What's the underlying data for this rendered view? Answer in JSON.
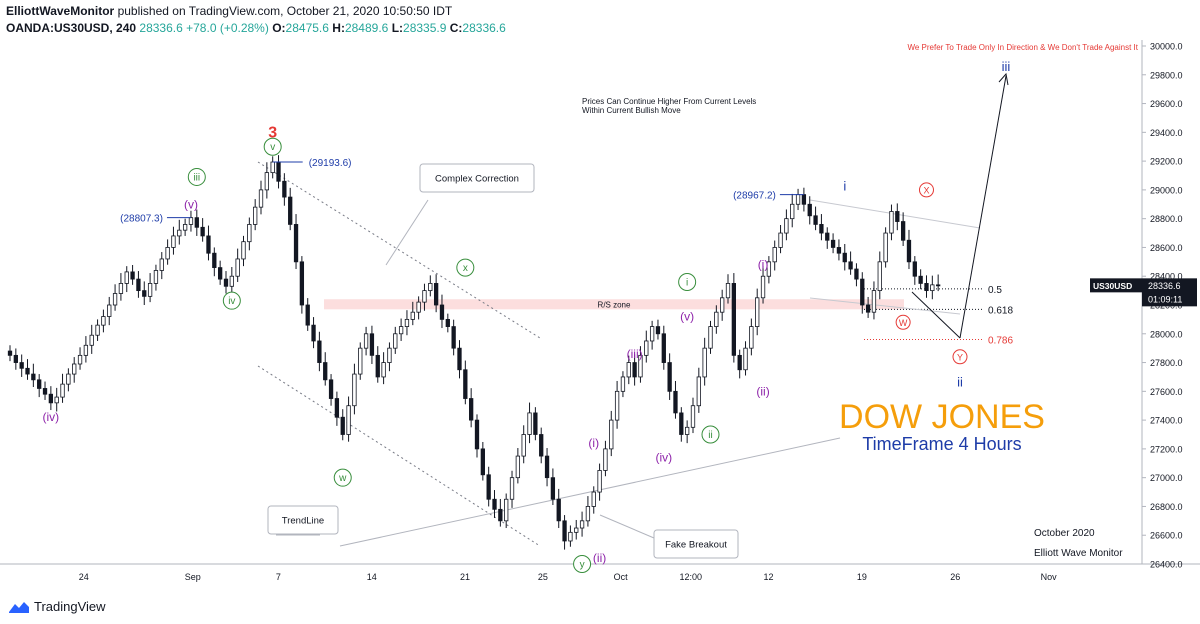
{
  "header": {
    "publisher": "ElliottWaveMonitor",
    "published_text": "published on TradingView.com, October 21, 2020 10:50:50 IDT",
    "symbol_line_prefix": "OANDA:US30USD, 240",
    "last": "28336.6",
    "change": "+78.0 (+0.28%)",
    "o_label": "O:",
    "o": "28475.6",
    "h_label": "H:",
    "h": "28489.6",
    "l_label": "L:",
    "l": "28335.9",
    "c_label": "C:",
    "c": "28336.6"
  },
  "footer": {
    "logo_text": "TradingView"
  },
  "colors": {
    "up": "#26a69a",
    "down": "#ef5350",
    "bar": "#131722",
    "green": "#388e3c",
    "purple": "#8e24aa",
    "blue": "#1e3ca8",
    "red": "#e53935",
    "orange": "#f59e0b"
  },
  "chart_data": {
    "type": "candlestick",
    "symbol": "OANDA:US30USD",
    "timeframe": "240",
    "price_axis": {
      "min": 26400,
      "max": 30000,
      "ticks": [
        "30000.0",
        "29800.0",
        "29600.0",
        "29400.0",
        "29200.0",
        "29000.0",
        "28800.0",
        "28600.0",
        "28400.0",
        "28200.0",
        "28000.0",
        "27800.0",
        "27600.0",
        "27400.0",
        "27200.0",
        "27000.0",
        "26800.0",
        "26600.0",
        "26400.0"
      ],
      "last_price_label": "28336.6",
      "symbol_badge": "US30USD",
      "countdown": "01:09:11"
    },
    "time_axis": {
      "ticks": [
        {
          "label": "24",
          "t": 10
        },
        {
          "label": "Sep",
          "t": 24
        },
        {
          "label": "7",
          "t": 35
        },
        {
          "label": "14",
          "t": 47
        },
        {
          "label": "21",
          "t": 59
        },
        {
          "label": "25",
          "t": 69
        },
        {
          "label": "Oct",
          "t": 79
        },
        {
          "label": "12:00",
          "t": 88
        },
        {
          "label": "12",
          "t": 98
        },
        {
          "label": "19",
          "t": 110
        },
        {
          "label": "26",
          "t": 122
        },
        {
          "label": "Nov",
          "t": 134
        }
      ],
      "t_max": 146
    },
    "closes": [
      27850,
      27800,
      27760,
      27720,
      27680,
      27620,
      27580,
      27520,
      27560,
      27650,
      27720,
      27790,
      27850,
      27920,
      27990,
      28060,
      28120,
      28200,
      28280,
      28350,
      28430,
      28380,
      28300,
      28260,
      28350,
      28440,
      28520,
      28600,
      28680,
      28720,
      28760,
      28807,
      28740,
      28680,
      28560,
      28460,
      28380,
      28330,
      28400,
      28520,
      28640,
      28760,
      28880,
      29000,
      29120,
      29193.6,
      29060,
      28950,
      28760,
      28500,
      28200,
      28060,
      27950,
      27800,
      27680,
      27550,
      27420,
      27300,
      27500,
      27720,
      27900,
      28000,
      27850,
      27700,
      27800,
      27900,
      28000,
      28050,
      28100,
      28150,
      28220,
      28300,
      28350,
      28200,
      28100,
      28050,
      27900,
      27750,
      27550,
      27400,
      27200,
      27020,
      26850,
      26780,
      26700,
      26850,
      27000,
      27150,
      27300,
      27450,
      27300,
      27150,
      27000,
      26850,
      26700,
      26560,
      26620,
      26650,
      26700,
      26800,
      26900,
      27050,
      27200,
      27400,
      27600,
      27700,
      27800,
      27700,
      27850,
      27950,
      28050,
      28000,
      27800,
      27600,
      27450,
      27300,
      27350,
      27500,
      27700,
      27900,
      28050,
      28150,
      28250,
      28350,
      27850,
      27750,
      27900,
      28050,
      28250,
      28400,
      28500,
      28600,
      28700,
      28800,
      28900,
      28967.2,
      28900,
      28820,
      28760,
      28700,
      28650,
      28600,
      28560,
      28500,
      28450,
      28380,
      28200,
      28150,
      28300,
      28500,
      28700,
      28850,
      28780,
      28650,
      28500,
      28400,
      28350,
      28300,
      28340,
      28336.6
    ],
    "levels": [
      {
        "label": "0.5",
        "price": 28312
      },
      {
        "label": "0.618",
        "price": 28170
      },
      {
        "label": "0.786",
        "price": 27960
      }
    ],
    "rs_zone": {
      "label": "R/S zone",
      "from": 28240,
      "to": 28170
    },
    "price_labels": [
      {
        "text": "(28807.3)",
        "t": 31,
        "price": 28807.3
      },
      {
        "text": "(29193.6)",
        "t": 45,
        "price": 29193.6
      },
      {
        "text": "(28967.2)",
        "t": 136,
        "price": 28967.2
      }
    ],
    "wave_labels": [
      {
        "text": "3",
        "t": 45,
        "price": 29400,
        "style": "red"
      },
      {
        "text": "v",
        "t": 45,
        "price": 29300,
        "style": "green-circle"
      },
      {
        "text": "iii",
        "t": 32,
        "price": 29090,
        "style": "green-circle"
      },
      {
        "text": "(v)",
        "t": 31,
        "price": 28900,
        "style": "purple"
      },
      {
        "text": "iv",
        "t": 38,
        "price": 28230,
        "style": "green-circle"
      },
      {
        "text": "(iv)",
        "t": 7,
        "price": 27420,
        "style": "purple"
      },
      {
        "text": "w",
        "t": 57,
        "price": 27000,
        "style": "green-circle"
      },
      {
        "text": "x",
        "t": 78,
        "price": 28460,
        "style": "green-circle"
      },
      {
        "text": "y",
        "t": 98,
        "price": 26400,
        "style": "green-circle"
      },
      {
        "text": "(i)",
        "t": 100,
        "price": 27240,
        "style": "purple"
      },
      {
        "text": "(ii)",
        "t": 101,
        "price": 26440,
        "style": "purple"
      },
      {
        "text": "(iii)",
        "t": 107,
        "price": 27860,
        "style": "purple"
      },
      {
        "text": "(iv)",
        "t": 112,
        "price": 27140,
        "style": "purple"
      },
      {
        "text": "(v)",
        "t": 116,
        "price": 28120,
        "style": "purple"
      },
      {
        "text": "i",
        "t": 116,
        "price": 28360,
        "style": "green-circle"
      },
      {
        "text": "ii",
        "t": 120,
        "price": 27300,
        "style": "green-circle"
      },
      {
        "text": "(i)",
        "t": 129,
        "price": 28480,
        "style": "purple"
      },
      {
        "text": "(ii)",
        "t": 129,
        "price": 27600,
        "style": "purple"
      },
      {
        "text": "i",
        "t": 143,
        "price": 29030,
        "style": "blue"
      },
      {
        "text": "W",
        "t": 153,
        "price": 28080,
        "style": "red-circle"
      },
      {
        "text": "X",
        "t": 157,
        "price": 29000,
        "style": "red-circle"
      },
      {
        "text": "Y",
        "t": 170,
        "price": 27840,
        "style": "red-circle"
      },
      {
        "text": "ii",
        "t": 170,
        "price": 27670,
        "style": "blue"
      },
      {
        "text": "iii",
        "t": 178,
        "price": 29860,
        "style": "blue"
      }
    ],
    "annotations": {
      "top_note": "We Prefer To Trade Only In Direction & We Don't Trade Against It",
      "prices_note_1": "Prices Can Continue Higher From Current Levels",
      "prices_note_2": "Within Current Bullish Move",
      "complex_correction": "Complex Correction",
      "trendline": "TrendLine",
      "fake_breakout": "Fake Breakout",
      "title": "DOW JONES",
      "subtitle": "TimeFrame 4 Hours",
      "month": "October 2020",
      "brand": "Elliott Wave Monitor"
    }
  }
}
